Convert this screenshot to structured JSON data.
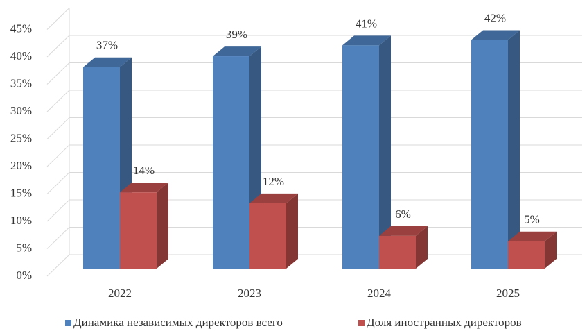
{
  "chart_data": {
    "type": "bar3d",
    "categories": [
      "2022",
      "2023",
      "2024",
      "2025"
    ],
    "series": [
      {
        "name": "Динамика независимых директоров всего",
        "color": "#4f81bd",
        "values": [
          37,
          39,
          41,
          42
        ],
        "value_labels": [
          "37%",
          "39%",
          "41%",
          "42%"
        ]
      },
      {
        "name": "Доля иностранных директоров",
        "color": "#c0504d",
        "values": [
          14,
          12,
          6,
          5
        ],
        "value_labels": [
          "14%",
          "12%",
          "6%",
          "5%"
        ]
      }
    ],
    "ylim": [
      0,
      45
    ],
    "yticks": [
      {
        "value": 0,
        "label": "0%"
      },
      {
        "value": 5,
        "label": "5%"
      },
      {
        "value": 10,
        "label": "10%"
      },
      {
        "value": 15,
        "label": "15%"
      },
      {
        "value": 20,
        "label": "20%"
      },
      {
        "value": 25,
        "label": "25%"
      },
      {
        "value": 30,
        "label": "30%"
      },
      {
        "value": 35,
        "label": "35%"
      },
      {
        "value": 40,
        "label": "40%"
      },
      {
        "value": 45,
        "label": "45%"
      }
    ],
    "grid": true,
    "legend": "bottom"
  }
}
